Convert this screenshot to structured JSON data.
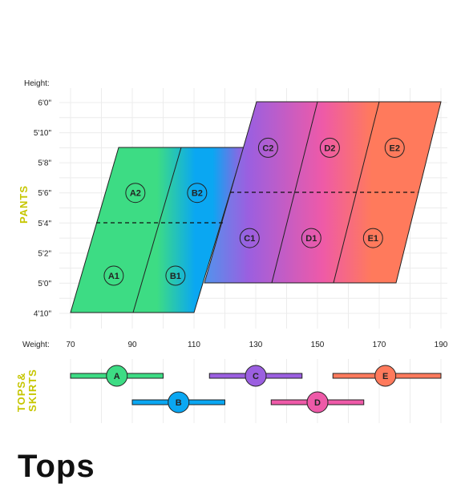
{
  "chart_data": {
    "type": "size-chart",
    "axes": {
      "height_label": "Height:",
      "weight_label": "Weight:",
      "height_ticks": [
        "6'0\"",
        "5'10\"",
        "5'8\"",
        "5'6\"",
        "5'4\"",
        "5'2\"",
        "5'0\"",
        "4'10\""
      ],
      "height_ticks_inches": [
        72,
        70,
        68,
        66,
        64,
        62,
        60,
        58
      ],
      "weight_ticks": [
        "70",
        "90",
        "110",
        "130",
        "150",
        "170",
        "190"
      ],
      "weight_ticks_values": [
        70,
        90,
        110,
        130,
        150,
        170,
        190
      ],
      "grid": true
    },
    "pants": {
      "label": "PANTS",
      "zones": [
        {
          "id": "A1",
          "weight": 84,
          "height_in": 60.5
        },
        {
          "id": "A2",
          "weight": 91,
          "height_in": 66.0
        },
        {
          "id": "B1",
          "weight": 104,
          "height_in": 60.5
        },
        {
          "id": "B2",
          "weight": 111,
          "height_in": 66.0
        },
        {
          "id": "C1",
          "weight": 128,
          "height_in": 63.0
        },
        {
          "id": "C2",
          "weight": 134,
          "height_in": 69.0
        },
        {
          "id": "D1",
          "weight": 148,
          "height_in": 63.0
        },
        {
          "id": "D2",
          "weight": 154,
          "height_in": 69.0
        },
        {
          "id": "E1",
          "weight": 168,
          "height_in": 63.0
        },
        {
          "id": "E2",
          "weight": 175,
          "height_in": 69.0
        }
      ],
      "colors": {
        "green": "#3ddc84",
        "blue": "#0aa7f2",
        "purple": "#9b5fe0",
        "pink": "#ee5aa8",
        "orange": "#ff7a5c"
      }
    },
    "tops_skirts": {
      "label_line1": "TOPS&",
      "label_line2": "SKIRTS",
      "bars": [
        {
          "id": "A",
          "from": 70,
          "to": 100,
          "marker": 85,
          "row": 1,
          "color": "#3ddc84"
        },
        {
          "id": "B",
          "from": 90,
          "to": 120,
          "marker": 105,
          "row": 2,
          "color": "#0aa7f2"
        },
        {
          "id": "C",
          "from": 115,
          "to": 145,
          "marker": 130,
          "row": 1,
          "color": "#9b5fe0"
        },
        {
          "id": "D",
          "from": 135,
          "to": 165,
          "marker": 150,
          "row": 2,
          "color": "#ee5aa8"
        },
        {
          "id": "E",
          "from": 155,
          "to": 190,
          "marker": 172,
          "row": 1,
          "color": "#ff7a5c"
        }
      ]
    }
  },
  "footer": {
    "title": "Tops"
  }
}
